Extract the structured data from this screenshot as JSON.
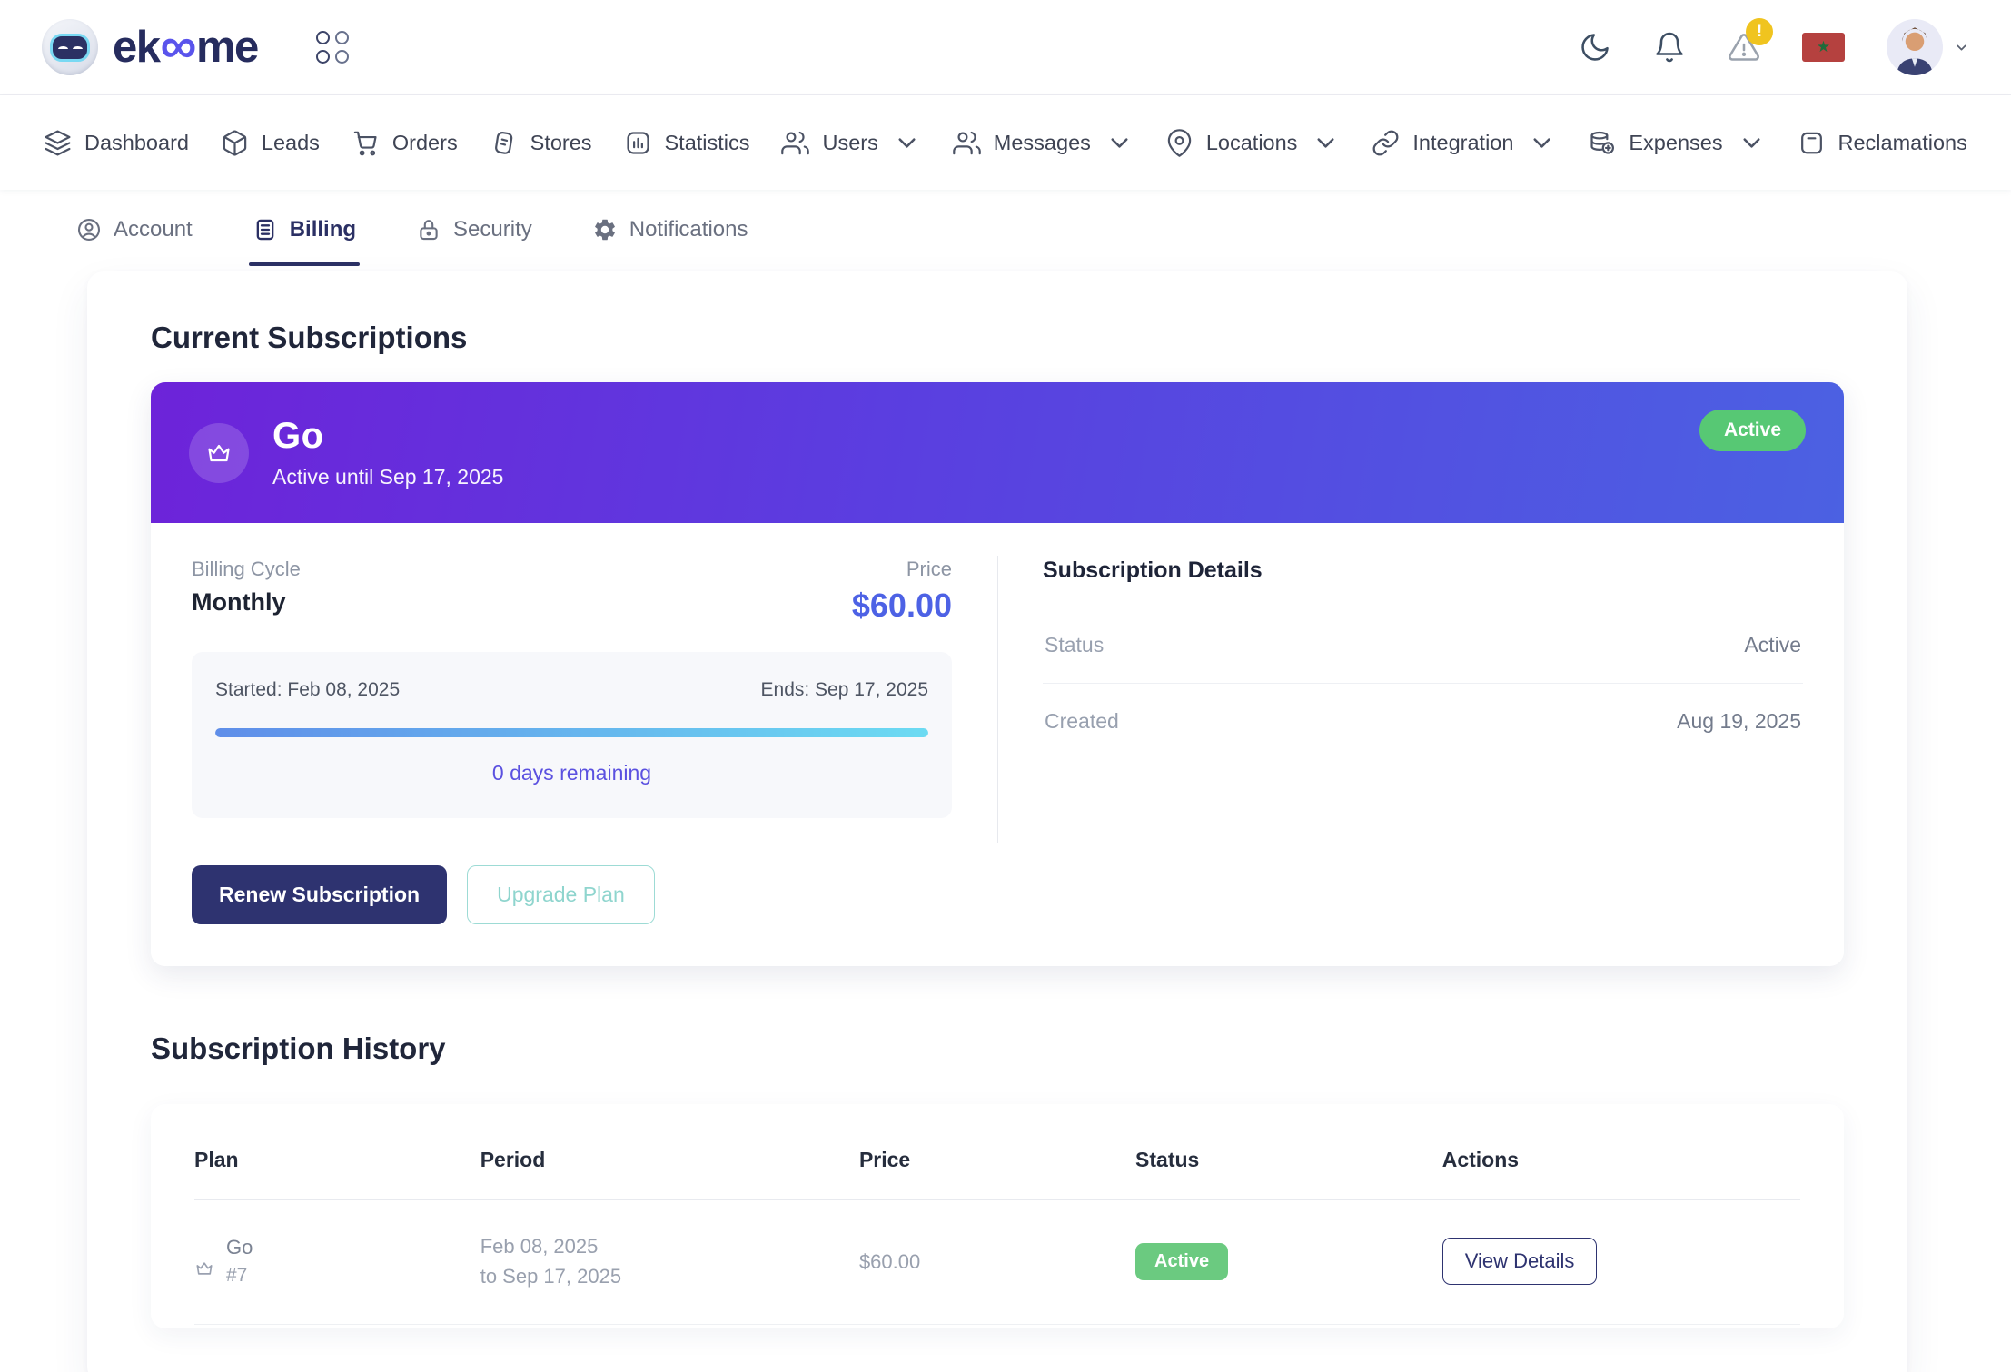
{
  "header": {
    "brand_pre": "ek",
    "brand_infinity": "∞",
    "brand_post": "me",
    "alert_badge": "!",
    "flag_star": "★"
  },
  "nav": {
    "items": [
      {
        "label": "Dashboard"
      },
      {
        "label": "Leads"
      },
      {
        "label": "Orders"
      },
      {
        "label": "Stores"
      },
      {
        "label": "Statistics"
      },
      {
        "label": "Users"
      },
      {
        "label": "Messages"
      },
      {
        "label": "Locations"
      },
      {
        "label": "Integration"
      },
      {
        "label": "Expenses"
      },
      {
        "label": "Reclamations"
      }
    ]
  },
  "tabs": {
    "items": [
      {
        "label": "Account"
      },
      {
        "label": "Billing"
      },
      {
        "label": "Security"
      },
      {
        "label": "Notifications"
      }
    ]
  },
  "current": {
    "section_title": "Current Subscriptions",
    "plan_name": "Go",
    "plan_subtitle": "Active until Sep 17, 2025",
    "status_badge": "Active",
    "billing_cycle_label": "Billing Cycle",
    "billing_cycle_value": "Monthly",
    "price_label": "Price",
    "price_value": "$60.00",
    "started": "Started: Feb 08, 2025",
    "ends": "Ends: Sep 17, 2025",
    "remaining": "0 days remaining",
    "progress_percent": 100,
    "renew_button": "Renew Subscription",
    "upgrade_button": "Upgrade Plan",
    "details_title": "Subscription Details",
    "detail_rows": [
      {
        "label": "Status",
        "value": "Active"
      },
      {
        "label": "Created",
        "value": "Aug 19, 2025"
      }
    ]
  },
  "history": {
    "section_title": "Subscription History",
    "columns": [
      "Plan",
      "Period",
      "Price",
      "Status",
      "Actions"
    ],
    "rows": [
      {
        "plan": "Go",
        "plan_id": "#7",
        "period_line1": "Feb 08, 2025",
        "period_line2": "to Sep 17, 2025",
        "price": "$60.00",
        "status": "Active",
        "action": "View Details"
      }
    ]
  },
  "colors": {
    "brand_navy": "#262c5e",
    "accent_purple": "#6d23d9",
    "accent_blue": "#4b61e2",
    "price_blue": "#4d62e5",
    "success_green": "#57c874",
    "button_navy": "#2e3370",
    "upgrade_teal": "#8fd5ce",
    "remaining_indigo": "#5b51e0",
    "alert_amber": "#f0c41f",
    "flag_red": "#b5413f"
  }
}
